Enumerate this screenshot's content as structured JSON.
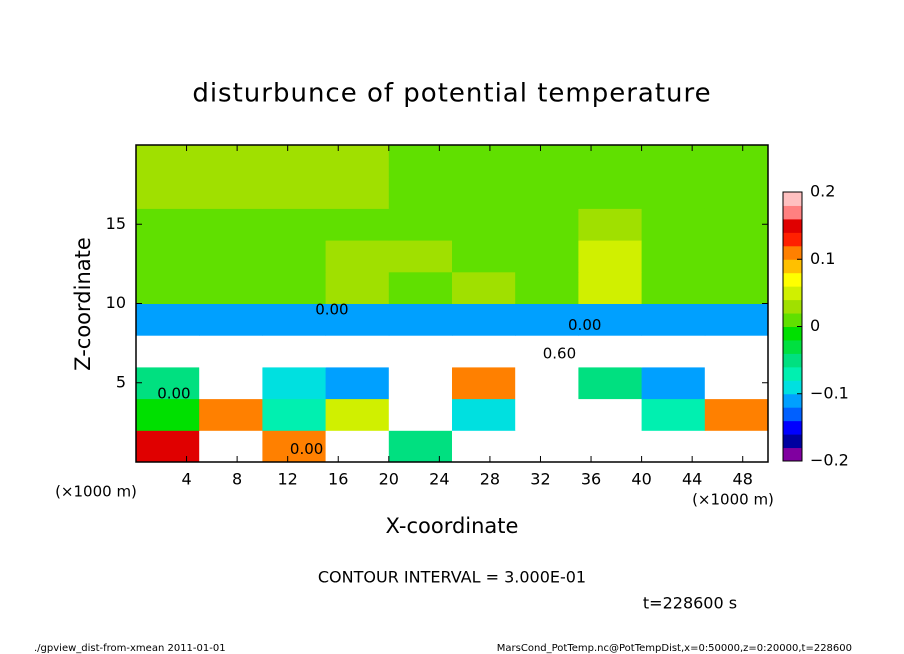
{
  "chart_data": {
    "type": "heatmap",
    "title": "disturbunce of potential temperature",
    "x_label": "X-coordinate",
    "y_label": "Z-coordinate",
    "x_unit_label": "(×1000 m)",
    "contour_interval": "CONTOUR INTERVAL = 3.000E-01",
    "time_label": "t=228600 s",
    "footer_left": "./gpview_dist-from-xmean  2011-01-01",
    "footer_right": "MarsCond_PotTemp.nc@PotTempDist,x=0:50000,z=0:20000,t=228600",
    "x": [
      2.5,
      7.5,
      12.5,
      17.5,
      22.5,
      27.5,
      32.5,
      37.5,
      42.5,
      47.5
    ],
    "z": [
      1,
      3,
      5,
      7,
      9,
      11,
      13,
      15,
      17,
      19
    ],
    "values": [
      [
        0.15,
        0.25,
        0.1,
        0.25,
        -0.05,
        0.25,
        0.25,
        0.25,
        0.25,
        0.25
      ],
      [
        -0.02,
        0.1,
        -0.08,
        0.05,
        0.25,
        -0.1,
        0.25,
        0.25,
        -0.08,
        0.1
      ],
      [
        -0.05,
        0.25,
        -0.1,
        -0.12,
        0.25,
        0.1,
        0.25,
        -0.05,
        -0.12,
        0.25
      ],
      [
        0.25,
        0.25,
        0.25,
        0.25,
        0.25,
        0.25,
        0.25,
        0.25,
        0.25,
        0.25
      ],
      [
        -0.12,
        -0.12,
        -0.12,
        -0.12,
        -0.12,
        -0.12,
        -0.12,
        -0.12,
        -0.12,
        -0.12
      ],
      [
        0.01,
        0.02,
        0.01,
        0.03,
        0.02,
        0.03,
        0.01,
        0.04,
        0.02,
        0.01
      ],
      [
        0.01,
        0.01,
        0.02,
        0.03,
        0.03,
        0.01,
        0.01,
        0.04,
        0.02,
        0.01
      ],
      [
        0.01,
        0.0,
        0.0,
        0.0,
        0.01,
        0.01,
        0.0,
        0.03,
        0.0,
        0.0
      ],
      [
        0.03,
        0.03,
        0.03,
        0.03,
        0.01,
        0.01,
        0.01,
        0.01,
        0.02,
        0.02
      ],
      [
        0.03,
        0.03,
        0.03,
        0.03,
        0.01,
        0.01,
        0.01,
        0.01,
        0.01,
        0.01
      ]
    ],
    "clim": [
      -0.2,
      0.2
    ],
    "over_color": "#ffffff",
    "colorscale": [
      "#8000a0",
      "#0000a0",
      "#0000ff",
      "#0060ff",
      "#00a0ff",
      "#00e0e0",
      "#00f0b0",
      "#00e080",
      "#00e040",
      "#00e000",
      "#60e000",
      "#a0e000",
      "#d0f000",
      "#ffff00",
      "#ffc000",
      "#ff8000",
      "#ff2000",
      "#e00000",
      "#ff8080",
      "#ffc0c0"
    ],
    "contour_labels": [
      {
        "text": "0.00",
        "x": 15.5,
        "z": 9.6
      },
      {
        "text": "0.00",
        "x": 35.5,
        "z": 8.6
      },
      {
        "text": "0.60",
        "x": 33.5,
        "z": 6.8
      },
      {
        "text": "0.00",
        "x": 3,
        "z": 4.3
      },
      {
        "text": "0.00",
        "x": 13.5,
        "z": 0.8
      }
    ],
    "xlim": [
      0,
      50
    ],
    "ylim": [
      0,
      20
    ],
    "xticks": [
      4,
      8,
      12,
      16,
      20,
      24,
      28,
      32,
      36,
      40,
      44,
      48
    ],
    "yticks": [
      5,
      10,
      15
    ],
    "cticks": [
      0.2,
      0.1,
      0,
      {
        "value": -0.1,
        "label": "−0.1"
      },
      {
        "value": -0.2,
        "label": "−0.2"
      }
    ]
  }
}
